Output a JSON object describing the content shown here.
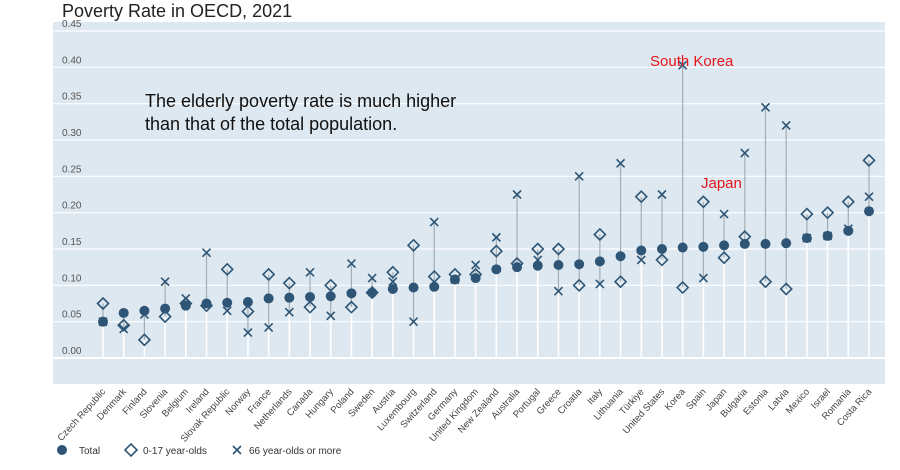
{
  "chart_data": {
    "type": "scatter",
    "title": "Poverty Rate in OECD, 2021",
    "xlabel": "",
    "ylabel": "",
    "ylim": [
      0,
      0.45
    ],
    "yticks": [
      "0.00",
      "0.05",
      "0.10",
      "0.15",
      "0.20",
      "0.25",
      "0.30",
      "0.35",
      "0.40",
      "0.45"
    ],
    "grid": true,
    "legend_position": "bottom-left",
    "categories": [
      "Czech Republic",
      "Denmark",
      "Finland",
      "Slovenia",
      "Belgium",
      "Ireland",
      "Slovak Republic",
      "Norway",
      "France",
      "Netherlands",
      "Canada",
      "Hungary",
      "Poland",
      "Sweden",
      "Austria",
      "Luxembourg",
      "Switzerland",
      "Germany",
      "United Kingdom",
      "New Zealand",
      "Australia",
      "Portugal",
      "Greece",
      "Croatia",
      "Italy",
      "Lithuania",
      "Türkiye",
      "United States",
      "Korea",
      "Spain",
      "Japan",
      "Bulgaria",
      "Estonia",
      "Latvia",
      "Mexico",
      "Israel",
      "Romania",
      "Costa Rica"
    ],
    "series": [
      {
        "name": "Total",
        "marker": "circle",
        "values": [
          0.05,
          0.062,
          0.065,
          0.068,
          0.072,
          0.075,
          0.076,
          0.077,
          0.082,
          0.083,
          0.084,
          0.085,
          0.089,
          0.09,
          0.095,
          0.097,
          0.098,
          0.108,
          0.11,
          0.122,
          0.125,
          0.127,
          0.128,
          0.129,
          0.133,
          0.14,
          0.148,
          0.15,
          0.152,
          0.153,
          0.155,
          0.157,
          0.157,
          0.158,
          0.165,
          0.168,
          0.175,
          0.202
        ]
      },
      {
        "name": "0-17 year-olds",
        "marker": "diamond",
        "values": [
          0.075,
          0.045,
          0.025,
          0.057,
          0.075,
          0.072,
          0.122,
          0.064,
          0.115,
          0.103,
          0.07,
          0.1,
          0.07,
          0.09,
          0.118,
          0.155,
          0.112,
          0.115,
          0.115,
          0.147,
          0.13,
          0.15,
          0.15,
          0.1,
          0.17,
          0.105,
          0.222,
          0.135,
          0.097,
          0.215,
          0.138,
          0.167,
          0.105,
          0.095,
          0.198,
          0.2,
          0.215,
          0.272
        ]
      },
      {
        "name": "66 year-olds or more",
        "marker": "cross",
        "values": [
          0.05,
          0.04,
          0.06,
          0.105,
          0.082,
          0.145,
          0.065,
          0.035,
          0.042,
          0.063,
          0.118,
          0.058,
          0.13,
          0.11,
          0.105,
          0.05,
          0.187,
          0.108,
          0.128,
          0.166,
          0.225,
          0.135,
          0.092,
          0.25,
          0.102,
          0.268,
          0.135,
          0.225,
          0.403,
          0.11,
          0.198,
          0.282,
          0.345,
          0.32,
          0.165,
          0.168,
          0.178,
          0.222
        ]
      }
    ],
    "annotations": [
      {
        "text": "South Korea",
        "category": "Korea",
        "color": "#e8141b"
      },
      {
        "text": "Japan",
        "category": "Japan",
        "color": "#e8141b"
      },
      {
        "text": "The elderly poverty rate is much higher",
        "color": "#111111"
      },
      {
        "text": "than that of the total population.",
        "color": "#111111"
      }
    ],
    "colors": {
      "marker": "#2e5575",
      "plot_bg": "#dde8f0",
      "grid": "#ffffff",
      "connector": "#a3adb5"
    }
  }
}
